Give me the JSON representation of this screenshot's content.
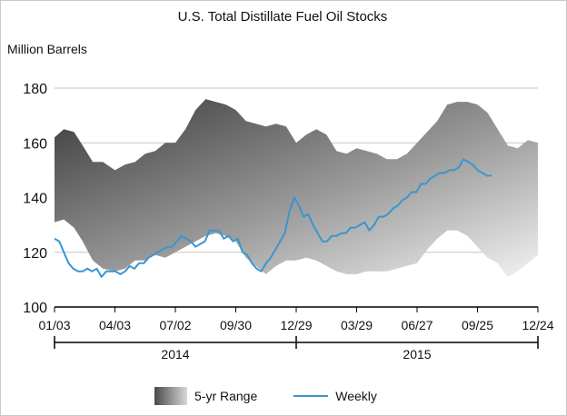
{
  "chart_data": {
    "type": "area",
    "title": "U.S. Total Distillate Fuel Oil Stocks",
    "ylabel": "Million Barrels",
    "xlabel": "",
    "ylim": [
      100,
      180
    ],
    "yticks": [
      100,
      120,
      140,
      160,
      180
    ],
    "grid": true,
    "x_ticks": [
      {
        "label": "01/03",
        "date": "2014-01-03"
      },
      {
        "label": "04/03",
        "date": "2014-04-03"
      },
      {
        "label": "07/02",
        "date": "2014-07-02"
      },
      {
        "label": "09/30",
        "date": "2014-09-30"
      },
      {
        "label": "12/29",
        "date": "2014-12-29"
      },
      {
        "label": "03/29",
        "date": "2015-03-29"
      },
      {
        "label": "06/27",
        "date": "2015-06-27"
      },
      {
        "label": "09/25",
        "date": "2015-09-25"
      },
      {
        "label": "12/24",
        "date": "2015-12-24"
      }
    ],
    "year_labels": [
      "2014",
      "2015"
    ],
    "legend": {
      "position": "bottom",
      "range_label": "5-yr Range",
      "weekly_label": "Weekly"
    },
    "range_band": {
      "name": "5-yr Range",
      "x": [
        "2014-01-03",
        "2014-01-17",
        "2014-02-01",
        "2014-02-14",
        "2014-03-01",
        "2014-03-16",
        "2014-04-03",
        "2014-04-18",
        "2014-05-03",
        "2014-05-18",
        "2014-06-02",
        "2014-06-17",
        "2014-07-02",
        "2014-07-17",
        "2014-08-01",
        "2014-08-16",
        "2014-08-31",
        "2014-09-15",
        "2014-09-30",
        "2014-10-15",
        "2014-10-30",
        "2014-11-14",
        "2014-11-29",
        "2014-12-14",
        "2014-12-29",
        "2015-01-13",
        "2015-01-28",
        "2015-02-12",
        "2015-02-27",
        "2015-03-14",
        "2015-03-29",
        "2015-04-13",
        "2015-04-28",
        "2015-05-13",
        "2015-05-28",
        "2015-06-12",
        "2015-06-27",
        "2015-07-12",
        "2015-07-27",
        "2015-08-11",
        "2015-08-26",
        "2015-09-10",
        "2015-09-25",
        "2015-10-10",
        "2015-10-25",
        "2015-11-09",
        "2015-11-24",
        "2015-12-09",
        "2015-12-24"
      ],
      "high": [
        162,
        165,
        164,
        159,
        153,
        153,
        150,
        152,
        153,
        156,
        157,
        160,
        160,
        165,
        172,
        176,
        175,
        174,
        172,
        168,
        167,
        166,
        167,
        166,
        160,
        163,
        165,
        163,
        157,
        156,
        158,
        157,
        156,
        154,
        154,
        156,
        160,
        164,
        168,
        174,
        175,
        175,
        174,
        171,
        165,
        159,
        158,
        161,
        160
      ],
      "low": [
        131,
        132,
        129,
        124,
        117,
        114,
        113,
        114,
        117,
        117,
        119,
        118,
        120,
        122,
        124,
        126,
        127,
        126,
        124,
        118,
        115,
        112,
        115,
        117,
        117,
        118,
        117,
        115,
        113,
        112,
        112,
        113,
        113,
        113,
        114,
        115,
        116,
        121,
        125,
        128,
        128,
        126,
        122,
        118,
        116,
        111,
        113,
        116,
        119
      ]
    },
    "series": [
      {
        "name": "Weekly",
        "x": [
          "2014-01-03",
          "2014-01-10",
          "2014-01-17",
          "2014-01-24",
          "2014-01-31",
          "2014-02-07",
          "2014-02-14",
          "2014-02-21",
          "2014-02-28",
          "2014-03-07",
          "2014-03-14",
          "2014-03-21",
          "2014-03-28",
          "2014-04-04",
          "2014-04-11",
          "2014-04-18",
          "2014-04-25",
          "2014-05-02",
          "2014-05-09",
          "2014-05-16",
          "2014-05-23",
          "2014-05-30",
          "2014-06-06",
          "2014-06-13",
          "2014-06-20",
          "2014-06-27",
          "2014-07-04",
          "2014-07-11",
          "2014-07-18",
          "2014-07-25",
          "2014-08-01",
          "2014-08-08",
          "2014-08-15",
          "2014-08-22",
          "2014-08-29",
          "2014-09-05",
          "2014-09-12",
          "2014-09-19",
          "2014-09-26",
          "2014-10-03",
          "2014-10-10",
          "2014-10-17",
          "2014-10-24",
          "2014-10-31",
          "2014-11-07",
          "2014-11-14",
          "2014-11-21",
          "2014-11-28",
          "2014-12-05",
          "2014-12-12",
          "2014-12-19",
          "2014-12-26",
          "2015-01-02",
          "2015-01-09",
          "2015-01-16",
          "2015-01-23",
          "2015-01-30",
          "2015-02-06",
          "2015-02-13",
          "2015-02-20",
          "2015-02-27",
          "2015-03-06",
          "2015-03-13",
          "2015-03-20",
          "2015-03-27",
          "2015-04-03",
          "2015-04-10",
          "2015-04-17",
          "2015-04-24",
          "2015-05-01",
          "2015-05-08",
          "2015-05-15",
          "2015-05-22",
          "2015-05-29",
          "2015-06-05",
          "2015-06-12",
          "2015-06-19",
          "2015-06-26",
          "2015-07-03",
          "2015-07-10",
          "2015-07-17",
          "2015-07-24",
          "2015-07-31",
          "2015-08-07",
          "2015-08-14",
          "2015-08-21",
          "2015-08-28",
          "2015-09-04",
          "2015-09-11",
          "2015-09-18",
          "2015-09-25",
          "2015-10-02",
          "2015-10-09",
          "2015-10-16"
        ],
        "values": [
          125,
          124,
          120,
          116,
          114,
          113,
          113,
          114,
          113,
          114,
          111,
          113,
          113,
          113,
          112,
          113,
          115,
          114,
          116,
          116,
          118,
          119,
          120,
          121,
          122,
          122,
          124,
          126,
          125,
          124,
          122,
          123,
          124,
          128,
          128,
          128,
          125,
          126,
          124,
          125,
          120,
          119,
          116,
          114,
          113,
          116,
          118,
          121,
          124,
          127,
          135,
          140,
          137,
          133,
          134,
          130,
          127,
          124,
          124,
          126,
          126,
          127,
          127,
          129,
          129,
          130,
          131,
          128,
          130,
          133,
          133,
          134,
          136,
          137,
          139,
          140,
          142,
          142,
          145,
          145,
          147,
          148,
          149,
          149,
          150,
          150,
          151,
          154,
          153,
          152,
          150,
          149,
          148,
          148
        ]
      }
    ]
  }
}
